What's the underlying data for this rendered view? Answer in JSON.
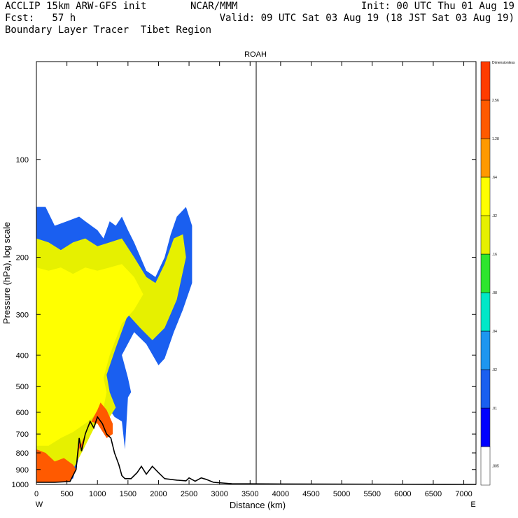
{
  "header": {
    "line1_left": "ACCLIP 15km ARW-GFS init",
    "line1_center": "NCAR/MMM",
    "line1_right": "Init: 00 UTC Thu 01 Aug 19",
    "line2_left": "Fcst:   57 h",
    "line2_right": "Valid: 09 UTC Sat 03 Aug 19 (18 JST Sat 03 Aug 19)",
    "line3_left": "Boundary Layer Tracer  Tibet Region"
  },
  "chart_data": {
    "type": "heatmap",
    "title": "ROAH",
    "xlabel": "Distance (km)",
    "ylabel": "Pressure (hPa), log scale",
    "x_ticks": [
      "0",
      "500",
      "1000",
      "1500",
      "2000",
      "2500",
      "3000",
      "3500",
      "4000",
      "4500",
      "5000",
      "5500",
      "6000",
      "6500",
      "7000"
    ],
    "y_ticks": [
      "100",
      "200",
      "300",
      "400",
      "500",
      "600",
      "700",
      "800",
      "900",
      "1000"
    ],
    "xlim": [
      0,
      7200
    ],
    "ylim_hPa": [
      1000,
      50
    ],
    "y_scale": "log",
    "x_end_labels": {
      "left": "W",
      "right": "E"
    },
    "vertical_marker_km": 3600,
    "colorbar": {
      "title": "Dimensionless",
      "levels": [
        ".005",
        ".01",
        ".02",
        ".04",
        ".08",
        ".16",
        ".32",
        ".64",
        "1.28",
        "2.56"
      ],
      "colors": [
        "#ffffff",
        "#0000ff",
        "#1a5ff0",
        "#1e96f0",
        "#00e8c8",
        "#2ee62e",
        "#e6f000",
        "#ffff00",
        "#ff9900",
        "#ff5a00",
        "#ff3c00"
      ]
    },
    "terrain_profile_km_hPa": [
      [
        0,
        985
      ],
      [
        300,
        985
      ],
      [
        550,
        980
      ],
      [
        650,
        900
      ],
      [
        700,
        720
      ],
      [
        740,
        790
      ],
      [
        800,
        700
      ],
      [
        880,
        640
      ],
      [
        940,
        670
      ],
      [
        1000,
        620
      ],
      [
        1080,
        650
      ],
      [
        1150,
        700
      ],
      [
        1220,
        720
      ],
      [
        1280,
        800
      ],
      [
        1350,
        870
      ],
      [
        1400,
        940
      ],
      [
        1450,
        960
      ],
      [
        1550,
        960
      ],
      [
        1650,
        920
      ],
      [
        1720,
        880
      ],
      [
        1800,
        930
      ],
      [
        1900,
        880
      ],
      [
        2000,
        920
      ],
      [
        2100,
        960
      ],
      [
        2300,
        970
      ],
      [
        2450,
        975
      ],
      [
        2500,
        955
      ],
      [
        2600,
        978
      ],
      [
        2700,
        955
      ],
      [
        2780,
        965
      ],
      [
        2900,
        985
      ],
      [
        3200,
        995
      ],
      [
        4000,
        997
      ],
      [
        7200,
        1000
      ]
    ],
    "tracer_regions": [
      {
        "level": ".01",
        "outline_km_hPa": [
          [
            0,
            970
          ],
          [
            300,
            975
          ],
          [
            600,
            960
          ],
          [
            700,
            820
          ],
          [
            800,
            700
          ],
          [
            950,
            600
          ],
          [
            1050,
            560
          ],
          [
            1150,
            570
          ],
          [
            1280,
            620
          ],
          [
            1400,
            640
          ],
          [
            1450,
            780
          ],
          [
            1500,
            540
          ],
          [
            1550,
            520
          ],
          [
            1500,
            470
          ],
          [
            1400,
            400
          ],
          [
            1600,
            340
          ],
          [
            1800,
            370
          ],
          [
            2000,
            430
          ],
          [
            2100,
            410
          ],
          [
            2250,
            340
          ],
          [
            2400,
            290
          ],
          [
            2550,
            240
          ],
          [
            2550,
            160
          ],
          [
            2450,
            140
          ],
          [
            2300,
            150
          ],
          [
            2200,
            170
          ],
          [
            2100,
            200
          ],
          [
            1950,
            230
          ],
          [
            1800,
            220
          ],
          [
            1600,
            180
          ],
          [
            1500,
            165
          ],
          [
            1400,
            150
          ],
          [
            1300,
            160
          ],
          [
            1200,
            155
          ],
          [
            1100,
            175
          ],
          [
            1000,
            165
          ],
          [
            900,
            160
          ],
          [
            800,
            155
          ],
          [
            700,
            150
          ],
          [
            500,
            155
          ],
          [
            300,
            160
          ],
          [
            150,
            140
          ],
          [
            0,
            140
          ]
        ]
      },
      {
        "level": ".16",
        "outline_km_hPa": [
          [
            0,
            930
          ],
          [
            300,
            960
          ],
          [
            600,
            900
          ],
          [
            800,
            760
          ],
          [
            1000,
            640
          ],
          [
            1200,
            620
          ],
          [
            1300,
            580
          ],
          [
            1200,
            520
          ],
          [
            1150,
            460
          ],
          [
            1300,
            380
          ],
          [
            1500,
            300
          ],
          [
            1700,
            330
          ],
          [
            1900,
            360
          ],
          [
            2100,
            330
          ],
          [
            2300,
            270
          ],
          [
            2450,
            200
          ],
          [
            2400,
            170
          ],
          [
            2250,
            175
          ],
          [
            2100,
            210
          ],
          [
            1950,
            240
          ],
          [
            1800,
            230
          ],
          [
            1600,
            200
          ],
          [
            1400,
            175
          ],
          [
            1200,
            180
          ],
          [
            1000,
            185
          ],
          [
            800,
            175
          ],
          [
            600,
            180
          ],
          [
            400,
            190
          ],
          [
            200,
            180
          ],
          [
            0,
            175
          ]
        ]
      },
      {
        "level": ".32",
        "outline_km_hPa": [
          [
            0,
            760
          ],
          [
            200,
            760
          ],
          [
            400,
            720
          ],
          [
            600,
            690
          ],
          [
            850,
            640
          ],
          [
            1000,
            600
          ],
          [
            1100,
            580
          ],
          [
            1150,
            520
          ],
          [
            1100,
            470
          ],
          [
            1200,
            400
          ],
          [
            1400,
            320
          ],
          [
            1600,
            290
          ],
          [
            1750,
            260
          ],
          [
            1600,
            230
          ],
          [
            1400,
            210
          ],
          [
            1200,
            215
          ],
          [
            1000,
            220
          ],
          [
            800,
            215
          ],
          [
            600,
            225
          ],
          [
            400,
            215
          ],
          [
            200,
            220
          ],
          [
            0,
            215
          ]
        ]
      },
      {
        "level": "1.28",
        "outline_km_hPa": [
          [
            0,
            985
          ],
          [
            300,
            985
          ],
          [
            550,
            980
          ],
          [
            650,
            900
          ],
          [
            700,
            780
          ],
          [
            800,
            700
          ],
          [
            900,
            640
          ],
          [
            1000,
            590
          ],
          [
            1050,
            560
          ],
          [
            1150,
            590
          ],
          [
            1250,
            650
          ],
          [
            1250,
            700
          ],
          [
            1150,
            720
          ],
          [
            1000,
            650
          ],
          [
            880,
            640
          ],
          [
            800,
            700
          ],
          [
            740,
            790
          ],
          [
            700,
            720
          ],
          [
            650,
            900
          ],
          [
            600,
            870
          ],
          [
            450,
            830
          ],
          [
            300,
            850
          ],
          [
            150,
            800
          ],
          [
            0,
            780
          ]
        ]
      }
    ]
  }
}
